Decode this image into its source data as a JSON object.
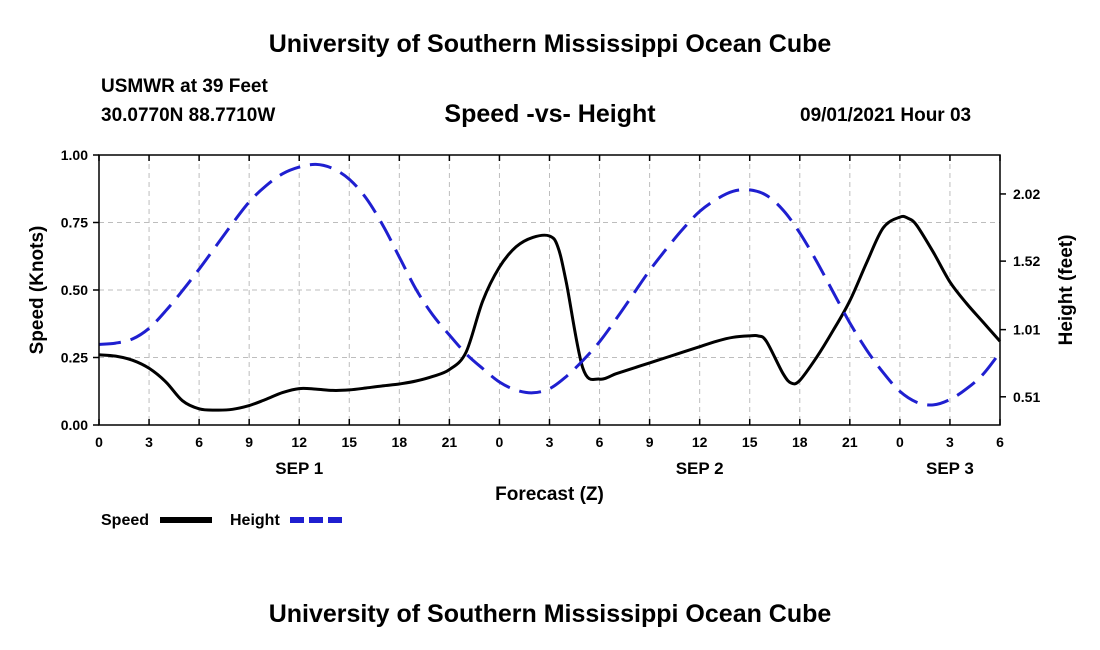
{
  "header": {
    "title_top": "University of Southern Mississippi Ocean Cube",
    "station": "USMWR at 39 Feet",
    "coords": "30.0770N  88.7710W",
    "chart_title": "Speed -vs- Height",
    "timestamp": "09/01/2021 Hour 03",
    "title_bottom": "University of Southern Mississippi Ocean Cube"
  },
  "colors": {
    "speed": "#000000",
    "height": "#1f1fd0",
    "grid": "#bdbdbd"
  },
  "chart_data": {
    "type": "line",
    "title": "Speed -vs- Height",
    "xlabel": "Forecast (Z)",
    "ylabel": "Speed (Knots)",
    "ylabel_right": "Height (feet)",
    "xlim": [
      0,
      54
    ],
    "ylim": [
      0,
      1.0
    ],
    "ylim_right": [
      0.3,
      2.31
    ],
    "grid": true,
    "legend_position": "bottom-left",
    "x_ticks": [
      0,
      3,
      6,
      9,
      12,
      15,
      18,
      21,
      24,
      27,
      30,
      33,
      36,
      39,
      42,
      45,
      48,
      51,
      54
    ],
    "x_tick_labels": [
      "0",
      "3",
      "6",
      "9",
      "12",
      "15",
      "18",
      "21",
      "0",
      "3",
      "6",
      "9",
      "12",
      "15",
      "18",
      "21",
      "0",
      "3",
      "6"
    ],
    "date_labels": [
      {
        "x": 12,
        "label": "SEP 1"
      },
      {
        "x": 36,
        "label": "SEP 2"
      },
      {
        "x": 51,
        "label": "SEP 3"
      }
    ],
    "y_ticks": [
      0,
      0.25,
      0.5,
      0.75,
      1.0
    ],
    "y_tick_labels": [
      "0.00",
      "0.25",
      "0.50",
      "0.75",
      "1.00"
    ],
    "y_ticks_right": [
      0.51,
      1.01,
      1.52,
      2.02
    ],
    "y_tick_labels_right": [
      "0.51",
      "1.01",
      "1.52",
      "2.02"
    ],
    "series": [
      {
        "name": "Speed",
        "axis": "left",
        "style": "solid",
        "x": [
          0,
          1,
          2,
          3,
          4,
          5,
          6,
          7,
          8,
          9,
          10,
          11,
          12,
          13,
          14,
          15,
          16,
          17,
          18,
          19,
          20,
          21,
          22,
          23,
          24,
          25,
          26,
          27,
          27.5,
          28,
          29,
          30,
          31,
          32,
          33,
          34,
          35,
          36,
          37,
          38,
          39,
          39.5,
          40,
          41,
          41.5,
          42,
          43,
          44,
          45,
          46,
          47,
          48,
          48.5,
          49,
          50,
          51,
          52,
          53,
          54
        ],
        "values": [
          0.26,
          0.255,
          0.24,
          0.21,
          0.16,
          0.09,
          0.06,
          0.055,
          0.058,
          0.072,
          0.095,
          0.12,
          0.135,
          0.133,
          0.128,
          0.13,
          0.137,
          0.145,
          0.152,
          0.163,
          0.18,
          0.205,
          0.27,
          0.46,
          0.585,
          0.66,
          0.695,
          0.7,
          0.66,
          0.53,
          0.21,
          0.17,
          0.19,
          0.21,
          0.23,
          0.25,
          0.27,
          0.29,
          0.31,
          0.325,
          0.33,
          0.33,
          0.31,
          0.19,
          0.155,
          0.165,
          0.25,
          0.35,
          0.46,
          0.6,
          0.73,
          0.77,
          0.765,
          0.74,
          0.64,
          0.53,
          0.45,
          0.38,
          0.31
        ]
      },
      {
        "name": "Height",
        "axis": "right",
        "style": "dashed",
        "x": [
          0,
          1,
          2,
          3,
          4,
          5,
          6,
          7,
          8,
          9,
          10,
          11,
          12,
          13,
          14,
          15,
          16,
          17,
          18,
          19,
          20,
          21,
          22,
          23,
          24,
          25,
          26,
          27,
          28,
          29,
          30,
          31,
          32,
          33,
          34,
          35,
          36,
          37,
          38,
          39,
          40,
          41,
          42,
          43,
          44,
          45,
          46,
          47,
          48,
          49,
          50,
          51,
          52,
          53,
          54
        ],
        "values": [
          0.9,
          0.91,
          0.94,
          1.02,
          1.15,
          1.3,
          1.46,
          1.63,
          1.8,
          1.96,
          2.08,
          2.17,
          2.22,
          2.24,
          2.21,
          2.13,
          1.99,
          1.79,
          1.55,
          1.31,
          1.12,
          0.97,
          0.83,
          0.72,
          0.62,
          0.56,
          0.54,
          0.57,
          0.66,
          0.78,
          0.92,
          1.09,
          1.27,
          1.45,
          1.61,
          1.76,
          1.89,
          1.98,
          2.04,
          2.05,
          2.01,
          1.9,
          1.73,
          1.52,
          1.29,
          1.06,
          0.86,
          0.69,
          0.55,
          0.47,
          0.45,
          0.49,
          0.57,
          0.68,
          0.84
        ]
      }
    ]
  }
}
